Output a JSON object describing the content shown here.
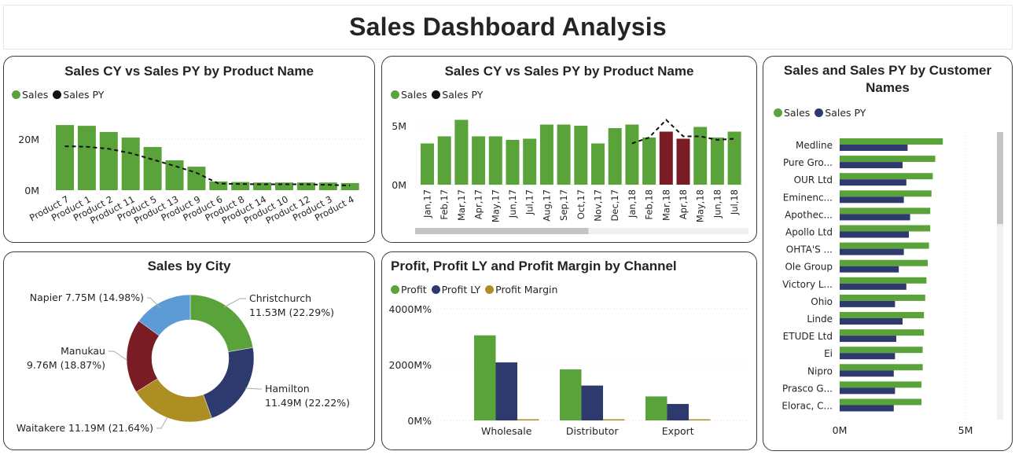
{
  "page": {
    "title": "Sales Dashboard Analysis"
  },
  "colors": {
    "green": "#5aa33b",
    "navy": "#2e3a6e",
    "maroon": "#7a1c24",
    "gold": "#ad8e23",
    "blue": "#5c9bd5",
    "black": "#111111"
  },
  "chart_data": [
    {
      "id": "product",
      "type": "bar",
      "title": "Sales CY vs Sales PY by Product Name",
      "legend": [
        {
          "label": "Sales",
          "color": "#5aa33b"
        },
        {
          "label": "Sales PY",
          "color": "#111111"
        }
      ],
      "legend_position": "top-left",
      "categories": [
        "Product 7",
        "Product 1",
        "Product 2",
        "Product 11",
        "Product 5",
        "Product 13",
        "Product 9",
        "Product 6",
        "Product 8",
        "Product 14",
        "Product 10",
        "Product 12",
        "Product 3",
        "Product 4"
      ],
      "series": [
        {
          "name": "Sales",
          "kind": "bar",
          "values": [
            25.5,
            25.2,
            22.8,
            20.6,
            16.9,
            11.7,
            9.2,
            3.4,
            3.2,
            3.0,
            3.0,
            3.0,
            3.0,
            2.8
          ]
        },
        {
          "name": "Sales PY",
          "kind": "dashed-line",
          "values": [
            17.2,
            17.0,
            16.2,
            14.5,
            12.0,
            9.5,
            6.8,
            2.6,
            2.4,
            2.3,
            2.3,
            2.3,
            2.1,
            1.8
          ]
        }
      ],
      "yticks": [
        "0M",
        "20M"
      ],
      "ytick_values": [
        0,
        20
      ],
      "ylim": [
        0,
        28
      ],
      "grid": true,
      "units": "M"
    },
    {
      "id": "monthly",
      "type": "bar",
      "title": "Sales CY vs Sales PY by Product Name",
      "legend": [
        {
          "label": "Sales",
          "color": "#5aa33b"
        },
        {
          "label": "Sales PY",
          "color": "#111111"
        }
      ],
      "legend_position": "top-left",
      "categories": [
        "Jan,17",
        "Feb,17",
        "Mar,17",
        "Apr,17",
        "May,17",
        "Jun,17",
        "Jul,17",
        "Aug,17",
        "Sep,17",
        "Oct,17",
        "Nov,17",
        "Dec,17",
        "Jan,18",
        "Feb,18",
        "Mar,18",
        "Apr,18",
        "May,18",
        "Jun,18",
        "Jul,18"
      ],
      "series": [
        {
          "name": "Sales",
          "kind": "bar",
          "values": [
            3.5,
            4.1,
            5.5,
            4.1,
            4.1,
            3.8,
            3.9,
            5.1,
            5.1,
            5.0,
            3.5,
            4.8,
            5.1,
            4.0,
            4.5,
            3.9,
            4.9,
            4.0,
            4.5
          ],
          "highlighted": [
            "Mar,18",
            "Apr,18"
          ],
          "highlight_color": "#7a1c24"
        },
        {
          "name": "Sales PY",
          "kind": "dashed-line",
          "values": [
            null,
            null,
            null,
            null,
            null,
            null,
            null,
            null,
            null,
            null,
            null,
            null,
            3.5,
            4.0,
            5.5,
            4.1,
            4.1,
            3.8,
            3.9
          ]
        }
      ],
      "yticks": [
        "0M",
        "5M"
      ],
      "ytick_values": [
        0,
        5
      ],
      "ylim": [
        0,
        6
      ],
      "grid": true,
      "scrollbar": {
        "visible_fraction": 0.52,
        "position": 0
      }
    },
    {
      "id": "customers",
      "type": "bar",
      "orientation": "horizontal",
      "title": "Sales and Sales PY by Customer Names",
      "legend": [
        {
          "label": "Sales",
          "color": "#5aa33b"
        },
        {
          "label": "Sales PY",
          "color": "#2e3a6e"
        }
      ],
      "legend_position": "top-left",
      "categories": [
        "Medline",
        "Pure Gro...",
        "OUR Ltd",
        "Eminenc...",
        "Apothec...",
        "Apollo Ltd",
        "OHTA'S ...",
        "Ole Group",
        "Victory L...",
        "Ohio",
        "Linde",
        "ETUDE Ltd",
        "Ei",
        "Nipro",
        "Prasco G...",
        "Elorac, C..."
      ],
      "series": [
        {
          "name": "Sales",
          "values": [
            4.1,
            3.8,
            3.7,
            3.65,
            3.6,
            3.6,
            3.55,
            3.5,
            3.45,
            3.4,
            3.35,
            3.35,
            3.3,
            3.3,
            3.25,
            3.25
          ]
        },
        {
          "name": "Sales PY",
          "values": [
            2.7,
            2.5,
            2.65,
            2.55,
            2.8,
            2.75,
            2.55,
            2.35,
            2.65,
            2.2,
            2.5,
            2.25,
            2.2,
            2.15,
            2.2,
            2.15
          ]
        }
      ],
      "xticks": [
        "0M",
        "5M"
      ],
      "xtick_values": [
        0,
        5
      ],
      "xlim": [
        0,
        5.8
      ],
      "grid": true,
      "scrollbar": {
        "visible_fraction": 0.32,
        "position": 0
      }
    },
    {
      "id": "city",
      "type": "pie",
      "variant": "donut",
      "title": "Sales by City",
      "slices": [
        {
          "label": "Christchurch",
          "value": 11.53,
          "pct": 22.29,
          "text1": "Christchurch",
          "text2": "11.53M (22.29%)",
          "color": "#5aa33b"
        },
        {
          "label": "Hamilton",
          "value": 11.49,
          "pct": 22.22,
          "text1": "Hamilton",
          "text2": "11.49M (22.22%)",
          "color": "#2e3a6e"
        },
        {
          "label": "Waitakere",
          "value": 11.19,
          "pct": 21.64,
          "text1": "Waitakere 11.19M (21.64%)",
          "text2": "",
          "color": "#ad8e23"
        },
        {
          "label": "Manukau",
          "value": 9.76,
          "pct": 18.87,
          "text1": "Manukau",
          "text2": "9.76M (18.87%)",
          "color": "#7a1c24"
        },
        {
          "label": "Napier",
          "value": 7.75,
          "pct": 14.98,
          "text1": "Napier 7.75M (14.98%)",
          "text2": "",
          "color": "#5c9bd5"
        }
      ]
    },
    {
      "id": "channel",
      "type": "bar",
      "title": "Profit, Profit LY and Profit Margin by Channel",
      "legend": [
        {
          "label": "Profit",
          "color": "#5aa33b"
        },
        {
          "label": "Profit LY",
          "color": "#2e3a6e"
        },
        {
          "label": "Profit Margin",
          "color": "#ad8e23"
        }
      ],
      "legend_position": "top-left",
      "categories": [
        "Wholesale",
        "Distributor",
        "Export"
      ],
      "series": [
        {
          "name": "Profit",
          "values": [
            3050,
            1830,
            860
          ]
        },
        {
          "name": "Profit LY",
          "values": [
            2080,
            1250,
            590
          ]
        },
        {
          "name": "Profit Margin",
          "values": [
            30,
            30,
            30
          ]
        }
      ],
      "yticks": [
        "0M%",
        "2000M%",
        "4000M%"
      ],
      "ytick_values": [
        0,
        2000,
        4000
      ],
      "ylim": [
        0,
        4000
      ],
      "grid": true
    }
  ]
}
